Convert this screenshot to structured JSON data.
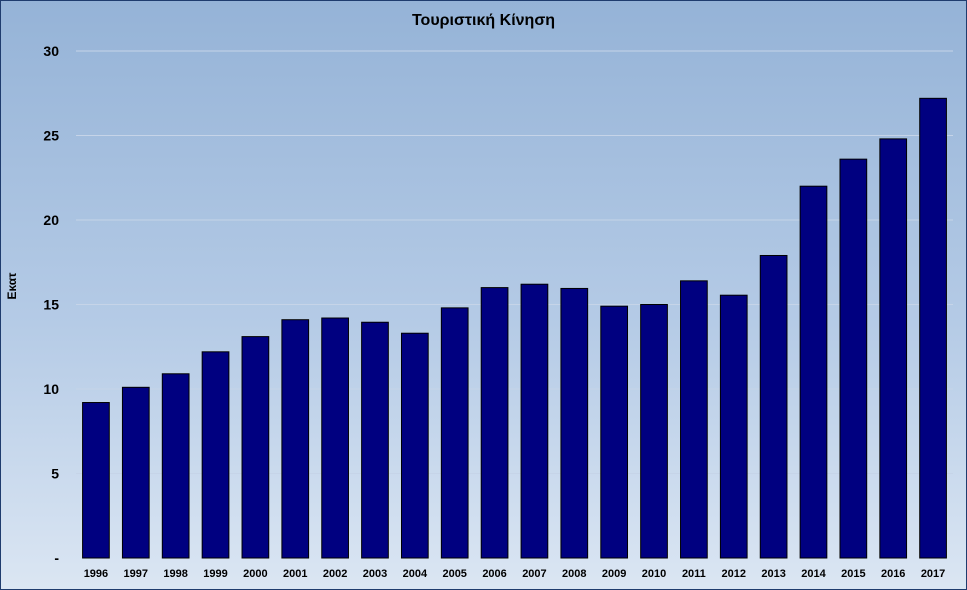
{
  "chart_data": {
    "type": "bar",
    "title": "Τουριστική  Κίνηση",
    "ylabel": "Εκατ",
    "xlabel": "",
    "categories": [
      "1996",
      "1997",
      "1998",
      "1999",
      "2000",
      "2001",
      "2002",
      "2003",
      "2004",
      "2005",
      "2006",
      "2007",
      "2008",
      "2009",
      "2010",
      "2011",
      "2012",
      "2013",
      "2014",
      "2015",
      "2016",
      "2017"
    ],
    "values": [
      9.2,
      10.1,
      10.9,
      12.2,
      13.1,
      14.1,
      14.2,
      13.95,
      13.3,
      14.8,
      16.0,
      16.2,
      15.95,
      14.9,
      15.0,
      16.4,
      15.55,
      17.9,
      22.0,
      23.6,
      24.8,
      27.2
    ],
    "ylim": [
      0,
      30
    ],
    "yticks": [
      0,
      5,
      10,
      15,
      20,
      25,
      30
    ],
    "ytick_labels": [
      "-",
      "5",
      "10",
      "15",
      "20",
      "25",
      "30"
    ],
    "grid": true,
    "legend": "none",
    "colors": {
      "bar_fill": "#000080",
      "bar_stroke": "#000000",
      "grid": "#c6d4e8"
    }
  }
}
